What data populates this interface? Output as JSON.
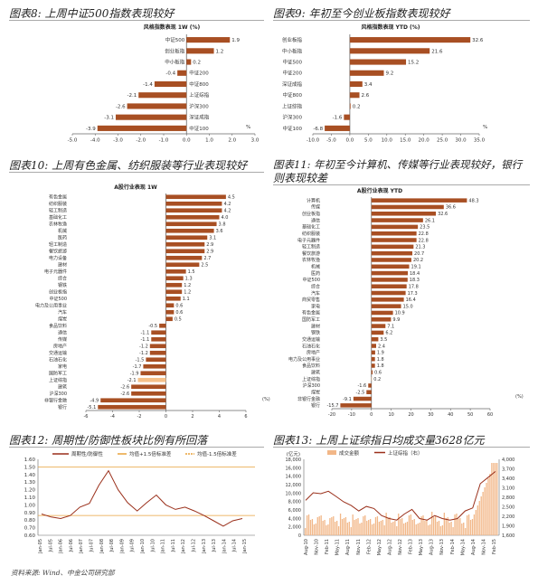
{
  "headers": {
    "f8": "图表8: 上周中证500指数表现较好",
    "f9": "图表9: 年初至今创业板指数表现较好",
    "f10": "图表10: 上周有色金属、纺织服装等行业表现较好",
    "f11": "图表11: 年初至今计算机、传媒等行业表现较好，银行",
    "f11b": "则表现较差",
    "f12": "图表12: 周期性/防御性板块比例有所回落",
    "f13": "图表13: 上周上证综指日均成交量3628亿元"
  },
  "source": "资料来源: Wind、中金公司研究部",
  "colors": {
    "bar": "#a84f23",
    "highlight": "#f5c08a",
    "line12": "#9a2f1a",
    "mean12": "#e8a23a",
    "vol13": "#f2b788",
    "line13": "#9a2f1a"
  },
  "chart_data": [
    {
      "type": "bar",
      "orientation": "horizontal",
      "title": "风格指数表现 1W (%)",
      "categories": [
        "中证500",
        "创业板指",
        "中小板指",
        "中证200",
        "中证800",
        "上证综指",
        "沪深300",
        "深证成指",
        "中证100"
      ],
      "values": [
        1.9,
        1.2,
        0.2,
        -0.4,
        -1.4,
        -2.1,
        -2.6,
        -3.1,
        -3.9
      ],
      "xlim": [
        -5.0,
        3.0
      ],
      "xticks": [
        "-5.0",
        "-4.0",
        "-3.0",
        "-2.0",
        "-1.0",
        "0.0",
        "1.0",
        "2.0",
        "3.0"
      ],
      "unit": "%"
    },
    {
      "type": "bar",
      "orientation": "horizontal",
      "title": "风格指数表现 YTD (%)",
      "categories": [
        "创业板指",
        "中小板指",
        "中证500",
        "中证200",
        "深证成指",
        "中证800",
        "上证综指",
        "沪深300",
        "中证100"
      ],
      "values": [
        32.6,
        21.6,
        15.2,
        9.2,
        3.4,
        2.6,
        0.2,
        -1.6,
        -6.8
      ],
      "xlim": [
        -10.0,
        35.0
      ],
      "xticks": [
        "-10.0",
        "-5.0",
        "0.0",
        "5.0",
        "10.0",
        "15.0",
        "20.0",
        "25.0",
        "30.0",
        "35.0"
      ],
      "unit": "%"
    },
    {
      "type": "bar",
      "orientation": "horizontal",
      "title": "A股行业表现 1W",
      "categories": [
        "有色金属",
        "纺织服装",
        "轻工制造",
        "基础化工",
        "农林牧渔",
        "机械",
        "医药",
        "轻工制造",
        "餐饮旅游",
        "电力设备",
        "建材",
        "电子元器件",
        "综合",
        "钢铁",
        "创业板指",
        "中证500",
        "电力及公用事业",
        "汽车",
        "煤炭",
        "食品饮料",
        "通信",
        "传媒",
        "房地产",
        "交通运输",
        "石油石化",
        "家电",
        "国防军工",
        "上证综指",
        "建筑",
        "沪深300",
        "非银行金融",
        "银行"
      ],
      "values": [
        4.5,
        4.2,
        4.2,
        4.0,
        3.8,
        3.6,
        3.1,
        2.9,
        2.9,
        2.7,
        2.5,
        1.5,
        1.3,
        1.2,
        1.2,
        1.1,
        0.6,
        0.6,
        0.5,
        -0.5,
        -1.1,
        -1.1,
        -1.2,
        -1.2,
        -1.5,
        -1.7,
        -1.9,
        -2.1,
        -2.6,
        -2.6,
        -4.9,
        -5.1
      ],
      "highlight": [
        27
      ],
      "xlim": [
        -6,
        6
      ],
      "xticks": [
        "-6",
        "-4",
        "-2",
        "0",
        "2",
        "4",
        "6"
      ],
      "unit": "(%)"
    },
    {
      "type": "bar",
      "orientation": "horizontal",
      "title": "A股行业表现 YTD",
      "categories": [
        "计算机",
        "传媒",
        "创业板指",
        "通信",
        "基础化工",
        "纺织服装",
        "电子元器件",
        "轻工制造",
        "餐饮旅游",
        "农林牧渔",
        "机械",
        "医药",
        "中证500",
        "综合",
        "汽车",
        "商贸零售",
        "家电",
        "有色金属",
        "国防军工",
        "建材",
        "钢铁",
        "交通运输",
        "石油石化",
        "房地产",
        "电力及公用事业",
        "食品饮料",
        "建筑",
        "上证综指",
        "沪深300",
        "煤炭",
        "非银行金融",
        "银行"
      ],
      "values": [
        48.3,
        36.6,
        32.6,
        26.1,
        23.5,
        22.8,
        22.8,
        21.3,
        20.7,
        20.2,
        19.1,
        18.4,
        18.3,
        17.8,
        17.3,
        16.4,
        15.0,
        10.9,
        9.9,
        7.1,
        6.2,
        3.5,
        2.4,
        1.9,
        1.8,
        1.8,
        0.6,
        0.2,
        -1.6,
        -2.5,
        -9.1,
        -15.7
      ],
      "highlight": [
        27
      ],
      "xlim": [
        -20,
        60
      ],
      "xticks": [
        "-20",
        "-10",
        "0",
        "10",
        "20",
        "30",
        "40",
        "50",
        "60"
      ],
      "unit": "(%)"
    },
    {
      "type": "line",
      "legend": [
        "周期性/防御性",
        "均值+1.5倍标准差",
        "均值-1.5倍标准差"
      ],
      "ylim": [
        0.6,
        1.6
      ],
      "yticks": [
        "1.60",
        "1.50",
        "1.40",
        "1.30",
        "1.20",
        "1.10",
        "1.00",
        "0.90",
        "0.80",
        "0.70",
        "0.60"
      ],
      "xticks": [
        "Jan-05",
        "Jul-05",
        "Jan-06",
        "Jul-06",
        "Jan-07",
        "Jul-07",
        "Jan-08",
        "Jul-08",
        "Jan-09",
        "Jul-09",
        "Jan-10",
        "Jul-10",
        "Jan-11",
        "Jul-11",
        "Jan-12",
        "Jul-12",
        "Jan-13",
        "Jul-13",
        "Jan-14",
        "Jul-14",
        "Jan-15"
      ],
      "mean_plus": 1.5,
      "mean_minus": 0.86,
      "series": [
        {
          "name": "周期性/防御性",
          "values": [
            0.88,
            0.84,
            0.82,
            0.86,
            0.97,
            1.02,
            1.26,
            1.45,
            1.2,
            1.03,
            0.92,
            1.03,
            1.13,
            1.0,
            0.94,
            0.97,
            0.92,
            0.86,
            0.79,
            0.72,
            0.79,
            0.82
          ]
        }
      ]
    },
    {
      "type": "bar+line",
      "legend": [
        "成交金额",
        "上证综指（右）"
      ],
      "annotation": "(亿元)",
      "y1lim": [
        0,
        18000
      ],
      "y1ticks": [
        "18,000",
        "16,000",
        "14,000",
        "12,000",
        "10,000",
        "8,000",
        "6,000",
        "4,000",
        "2,000",
        "0"
      ],
      "y2lim": [
        1500,
        4000
      ],
      "y2ticks": [
        "4,000",
        "3,700",
        "3,400",
        "3,100",
        "2,800",
        "2,500",
        "2,200",
        "1,900",
        "1,600"
      ],
      "xticks": [
        "Aug-10",
        "Nov-10",
        "Feb-11",
        "May-11",
        "Aug-11",
        "Nov-11",
        "Feb-12",
        "May-12",
        "Aug-12",
        "Nov-12",
        "Feb-13",
        "May-13",
        "Aug-13",
        "Nov-13",
        "Feb-14",
        "May-14",
        "Aug-14",
        "Nov-14",
        "Feb-15"
      ],
      "index_values": [
        2650,
        2900,
        2870,
        2950,
        2780,
        2600,
        2480,
        2300,
        2450,
        2380,
        2150,
        2050,
        2000,
        2200,
        2350,
        2050,
        2000,
        2150,
        2050,
        2000,
        2050,
        2300,
        2400,
        3200,
        3400,
        3600
      ]
    }
  ]
}
